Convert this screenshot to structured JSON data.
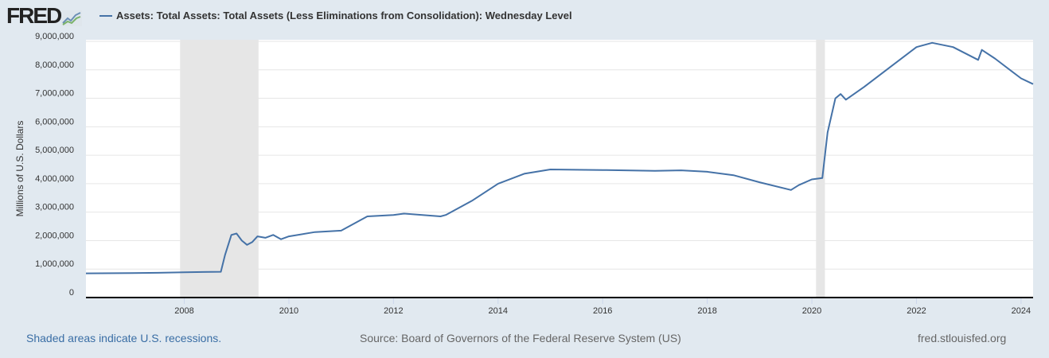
{
  "logo": {
    "text": "FRED"
  },
  "chart_data": {
    "type": "line",
    "title": "Assets: Total Assets: Total Assets (Less Eliminations from Consolidation): Wednesday Level",
    "ylabel": "Millions of U.S. Dollars",
    "xlabel": "",
    "xlim": [
      2006.12,
      2024.23
    ],
    "ylim": [
      0,
      9000000
    ],
    "yticks": [
      0,
      1000000,
      2000000,
      3000000,
      4000000,
      5000000,
      6000000,
      7000000,
      8000000,
      9000000
    ],
    "ytick_labels": [
      "0",
      "1,000,000",
      "2,000,000",
      "3,000,000",
      "4,000,000",
      "5,000,000",
      "6,000,000",
      "7,000,000",
      "8,000,000",
      "9,000,000"
    ],
    "xticks": [
      2008,
      2010,
      2012,
      2014,
      2016,
      2018,
      2020,
      2022,
      2024
    ],
    "xtick_labels": [
      "2008",
      "2010",
      "2012",
      "2014",
      "2016",
      "2018",
      "2020",
      "2022",
      "2024"
    ],
    "recessions": [
      [
        2007.92,
        2009.42
      ],
      [
        2020.08,
        2020.25
      ]
    ],
    "grid": true,
    "legend": "top-left",
    "series": [
      {
        "name": "Assets: Total Assets: Total Assets (Less Eliminations from Consolidation): Wednesday Level",
        "color": "#4572a7",
        "x": [
          2006.12,
          2007.0,
          2007.5,
          2008.0,
          2008.7,
          2008.78,
          2008.9,
          2009.0,
          2009.1,
          2009.2,
          2009.3,
          2009.4,
          2009.55,
          2009.7,
          2009.85,
          2010.0,
          2010.5,
          2011.0,
          2011.5,
          2012.0,
          2012.2,
          2012.9,
          2013.0,
          2013.5,
          2014.0,
          2014.5,
          2015.0,
          2016.0,
          2017.0,
          2017.5,
          2018.0,
          2018.5,
          2019.0,
          2019.6,
          2019.75,
          2020.0,
          2020.2,
          2020.3,
          2020.45,
          2020.55,
          2020.65,
          2021.0,
          2021.5,
          2022.0,
          2022.3,
          2022.7,
          2023.18,
          2023.25,
          2023.5,
          2024.0,
          2024.23
        ],
        "y": [
          850000,
          860000,
          870000,
          890000,
          905000,
          1500000,
          2200000,
          2250000,
          2000000,
          1850000,
          1950000,
          2150000,
          2100000,
          2200000,
          2050000,
          2150000,
          2300000,
          2350000,
          2850000,
          2900000,
          2950000,
          2850000,
          2900000,
          3400000,
          4000000,
          4350000,
          4500000,
          4480000,
          4450000,
          4470000,
          4420000,
          4300000,
          4050000,
          3780000,
          3950000,
          4150000,
          4200000,
          5800000,
          7000000,
          7150000,
          6950000,
          7400000,
          8100000,
          8800000,
          8950000,
          8800000,
          8350000,
          8700000,
          8400000,
          7700000,
          7500000
        ]
      }
    ]
  },
  "footer": {
    "note": "Shaded areas indicate U.S. recessions.",
    "source": "Source: Board of Governors of the Federal Reserve System (US)",
    "site": "fred.stlouisfed.org"
  }
}
